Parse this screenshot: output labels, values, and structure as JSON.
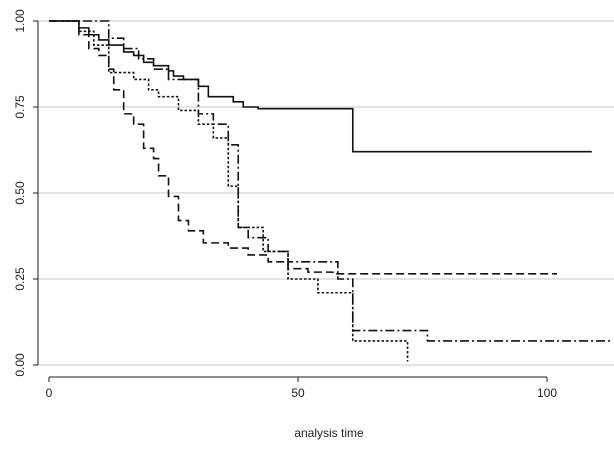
{
  "chart_data": {
    "type": "line",
    "step": true,
    "title": "",
    "xlabel": "analysis time",
    "ylabel": "",
    "xlim": [
      0,
      113
    ],
    "ylim": [
      0,
      1
    ],
    "xticks": [
      0,
      50,
      100
    ],
    "xtick_labels": [
      "0",
      "50",
      "100"
    ],
    "yticks": [
      0,
      0.25,
      0.5,
      0.75,
      1
    ],
    "ytick_labels": [
      "0.00",
      "0.25",
      "0.50",
      "0.75",
      "1.00"
    ],
    "grid": "horizontal",
    "legend": "none",
    "series": [
      {
        "style": "solid",
        "x": [
          0,
          6,
          8,
          10,
          12,
          15,
          17,
          19,
          21,
          24,
          25,
          27,
          30,
          32,
          37,
          39,
          42,
          45,
          50,
          60,
          61,
          109
        ],
        "y": [
          1,
          0.98,
          0.96,
          0.945,
          0.93,
          0.91,
          0.9,
          0.88,
          0.87,
          0.855,
          0.84,
          0.83,
          0.81,
          0.78,
          0.765,
          0.75,
          0.745,
          0.745,
          0.745,
          0.745,
          0.62,
          0.62
        ]
      },
      {
        "style": "dashed",
        "x": [
          0,
          6,
          8,
          10,
          12,
          13,
          15,
          17,
          19,
          21,
          22,
          24,
          26,
          28,
          31,
          36,
          40,
          44,
          48,
          52,
          57,
          102
        ],
        "y": [
          1,
          0.96,
          0.92,
          0.9,
          0.86,
          0.8,
          0.73,
          0.7,
          0.63,
          0.6,
          0.55,
          0.49,
          0.42,
          0.39,
          0.355,
          0.34,
          0.32,
          0.3,
          0.28,
          0.27,
          0.265,
          0.265
        ]
      },
      {
        "style": "dash-dot",
        "x": [
          0,
          10,
          12,
          15,
          18,
          21,
          24,
          30,
          33,
          36,
          38,
          40,
          44,
          48,
          58,
          61,
          76,
          113
        ],
        "y": [
          1,
          1,
          0.95,
          0.92,
          0.89,
          0.86,
          0.83,
          0.73,
          0.7,
          0.64,
          0.4,
          0.37,
          0.33,
          0.3,
          0.25,
          0.1,
          0.07,
          0.07
        ]
      },
      {
        "style": "dotted",
        "x": [
          0,
          6,
          9,
          12,
          17,
          20,
          22,
          26,
          30,
          33,
          36,
          38,
          43,
          48,
          54,
          61,
          72
        ],
        "y": [
          1,
          0.97,
          0.93,
          0.85,
          0.83,
          0.8,
          0.78,
          0.74,
          0.7,
          0.66,
          0.52,
          0.4,
          0.33,
          0.25,
          0.21,
          0.07,
          0.01
        ]
      }
    ]
  }
}
